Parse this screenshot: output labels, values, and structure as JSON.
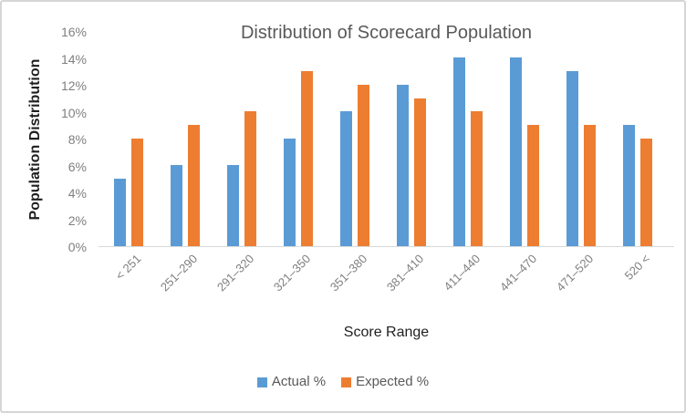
{
  "chart_data": {
    "type": "bar",
    "title": "Distribution of Scorecard Population",
    "xlabel": "Score Range",
    "ylabel": "Population Distribution",
    "categories": [
      "< 251",
      "251–290",
      "291–320",
      "321–350",
      "351–380",
      "381–410",
      "411–440",
      "441–470",
      "471–520",
      "520 <"
    ],
    "series": [
      {
        "name": "Actual %",
        "color": "#5B9BD5",
        "values": [
          5,
          6,
          6,
          8,
          10,
          12,
          14,
          14,
          13,
          9
        ]
      },
      {
        "name": "Expected %",
        "color": "#ED7D31",
        "values": [
          8,
          9,
          10,
          13,
          12,
          11,
          10,
          9,
          9,
          8
        ]
      }
    ],
    "ylim": [
      0,
      16
    ],
    "ytick_step": 2,
    "ytick_labels": [
      "0%",
      "2%",
      "4%",
      "6%",
      "8%",
      "10%",
      "12%",
      "14%",
      "16%"
    ],
    "grid": false,
    "legend_position": "bottom",
    "colors": {
      "background": "#ffffff",
      "canvas_border": "#d6d6d6",
      "title_text": "#595959",
      "tick_text": "#7f7f7f",
      "axis_title_text": "#1f1f1f",
      "axis_line": "#d9d9d9"
    }
  }
}
